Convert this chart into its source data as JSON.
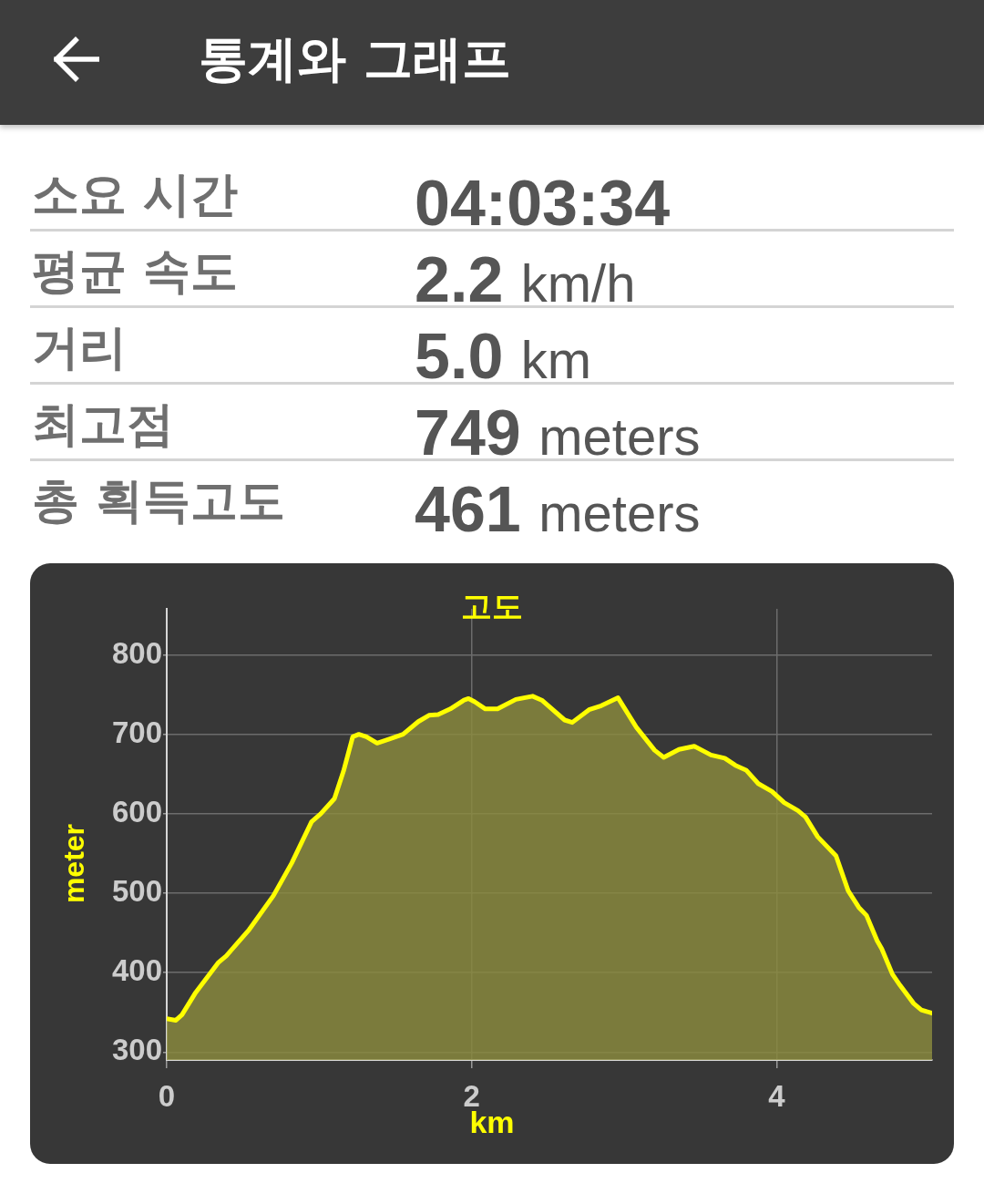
{
  "chart_data": [
    {
      "type": "other",
      "title": "통계와 그래프",
      "annotations": [
        "소요 시간",
        "04:03:34",
        "평균 속도",
        "2.2 km/h",
        "거리",
        "5.0 km",
        "최고점",
        "749 meters",
        "총 획득고도",
        "461 meters"
      ]
    },
    {
      "type": "area",
      "title": "고도",
      "xlabel": "km",
      "ylabel": "meter",
      "x": [
        0,
        0.06,
        0.1,
        0.19,
        0.34,
        0.39,
        0.54,
        0.7,
        0.82,
        0.95,
        1.01,
        1.1,
        1.16,
        1.22,
        1.26,
        1.31,
        1.38,
        1.46,
        1.55,
        1.65,
        1.72,
        1.78,
        1.86,
        1.95,
        1.98,
        2.02,
        2.09,
        2.17,
        2.29,
        2.4,
        2.46,
        2.61,
        2.66,
        2.77,
        2.85,
        2.96,
        3.08,
        3.2,
        3.26,
        3.36,
        3.46,
        3.57,
        3.66,
        3.73,
        3.8,
        3.88,
        3.97,
        4.05,
        4.14,
        4.19,
        4.27,
        4.39,
        4.47,
        4.54,
        4.59,
        4.66,
        4.69,
        4.76,
        4.81,
        4.9,
        4.95,
        5.02
      ],
      "series": [
        {
          "color": "#ffff00",
          "values": [
            342,
            340,
            347,
            375,
            413,
            421,
            454,
            497,
            538,
            590,
            600,
            619,
            654,
            697,
            700,
            697,
            689,
            694,
            700,
            716,
            724,
            725,
            732,
            743,
            745,
            741,
            732,
            732,
            744,
            748,
            743,
            718,
            715,
            731,
            736,
            746,
            709,
            680,
            671,
            681,
            685,
            674,
            670,
            661,
            655,
            638,
            628,
            614,
            604,
            596,
            571,
            547,
            503,
            482,
            472,
            440,
            430,
            398,
            384,
            361,
            353,
            349
          ]
        }
      ],
      "xlim": [
        0,
        5.02
      ],
      "ylim": [
        290,
        858
      ],
      "xticks": [
        0,
        2,
        4
      ],
      "yticks": [
        300,
        400,
        500,
        600,
        700,
        800
      ],
      "grid": true,
      "marker": "none"
    }
  ]
}
